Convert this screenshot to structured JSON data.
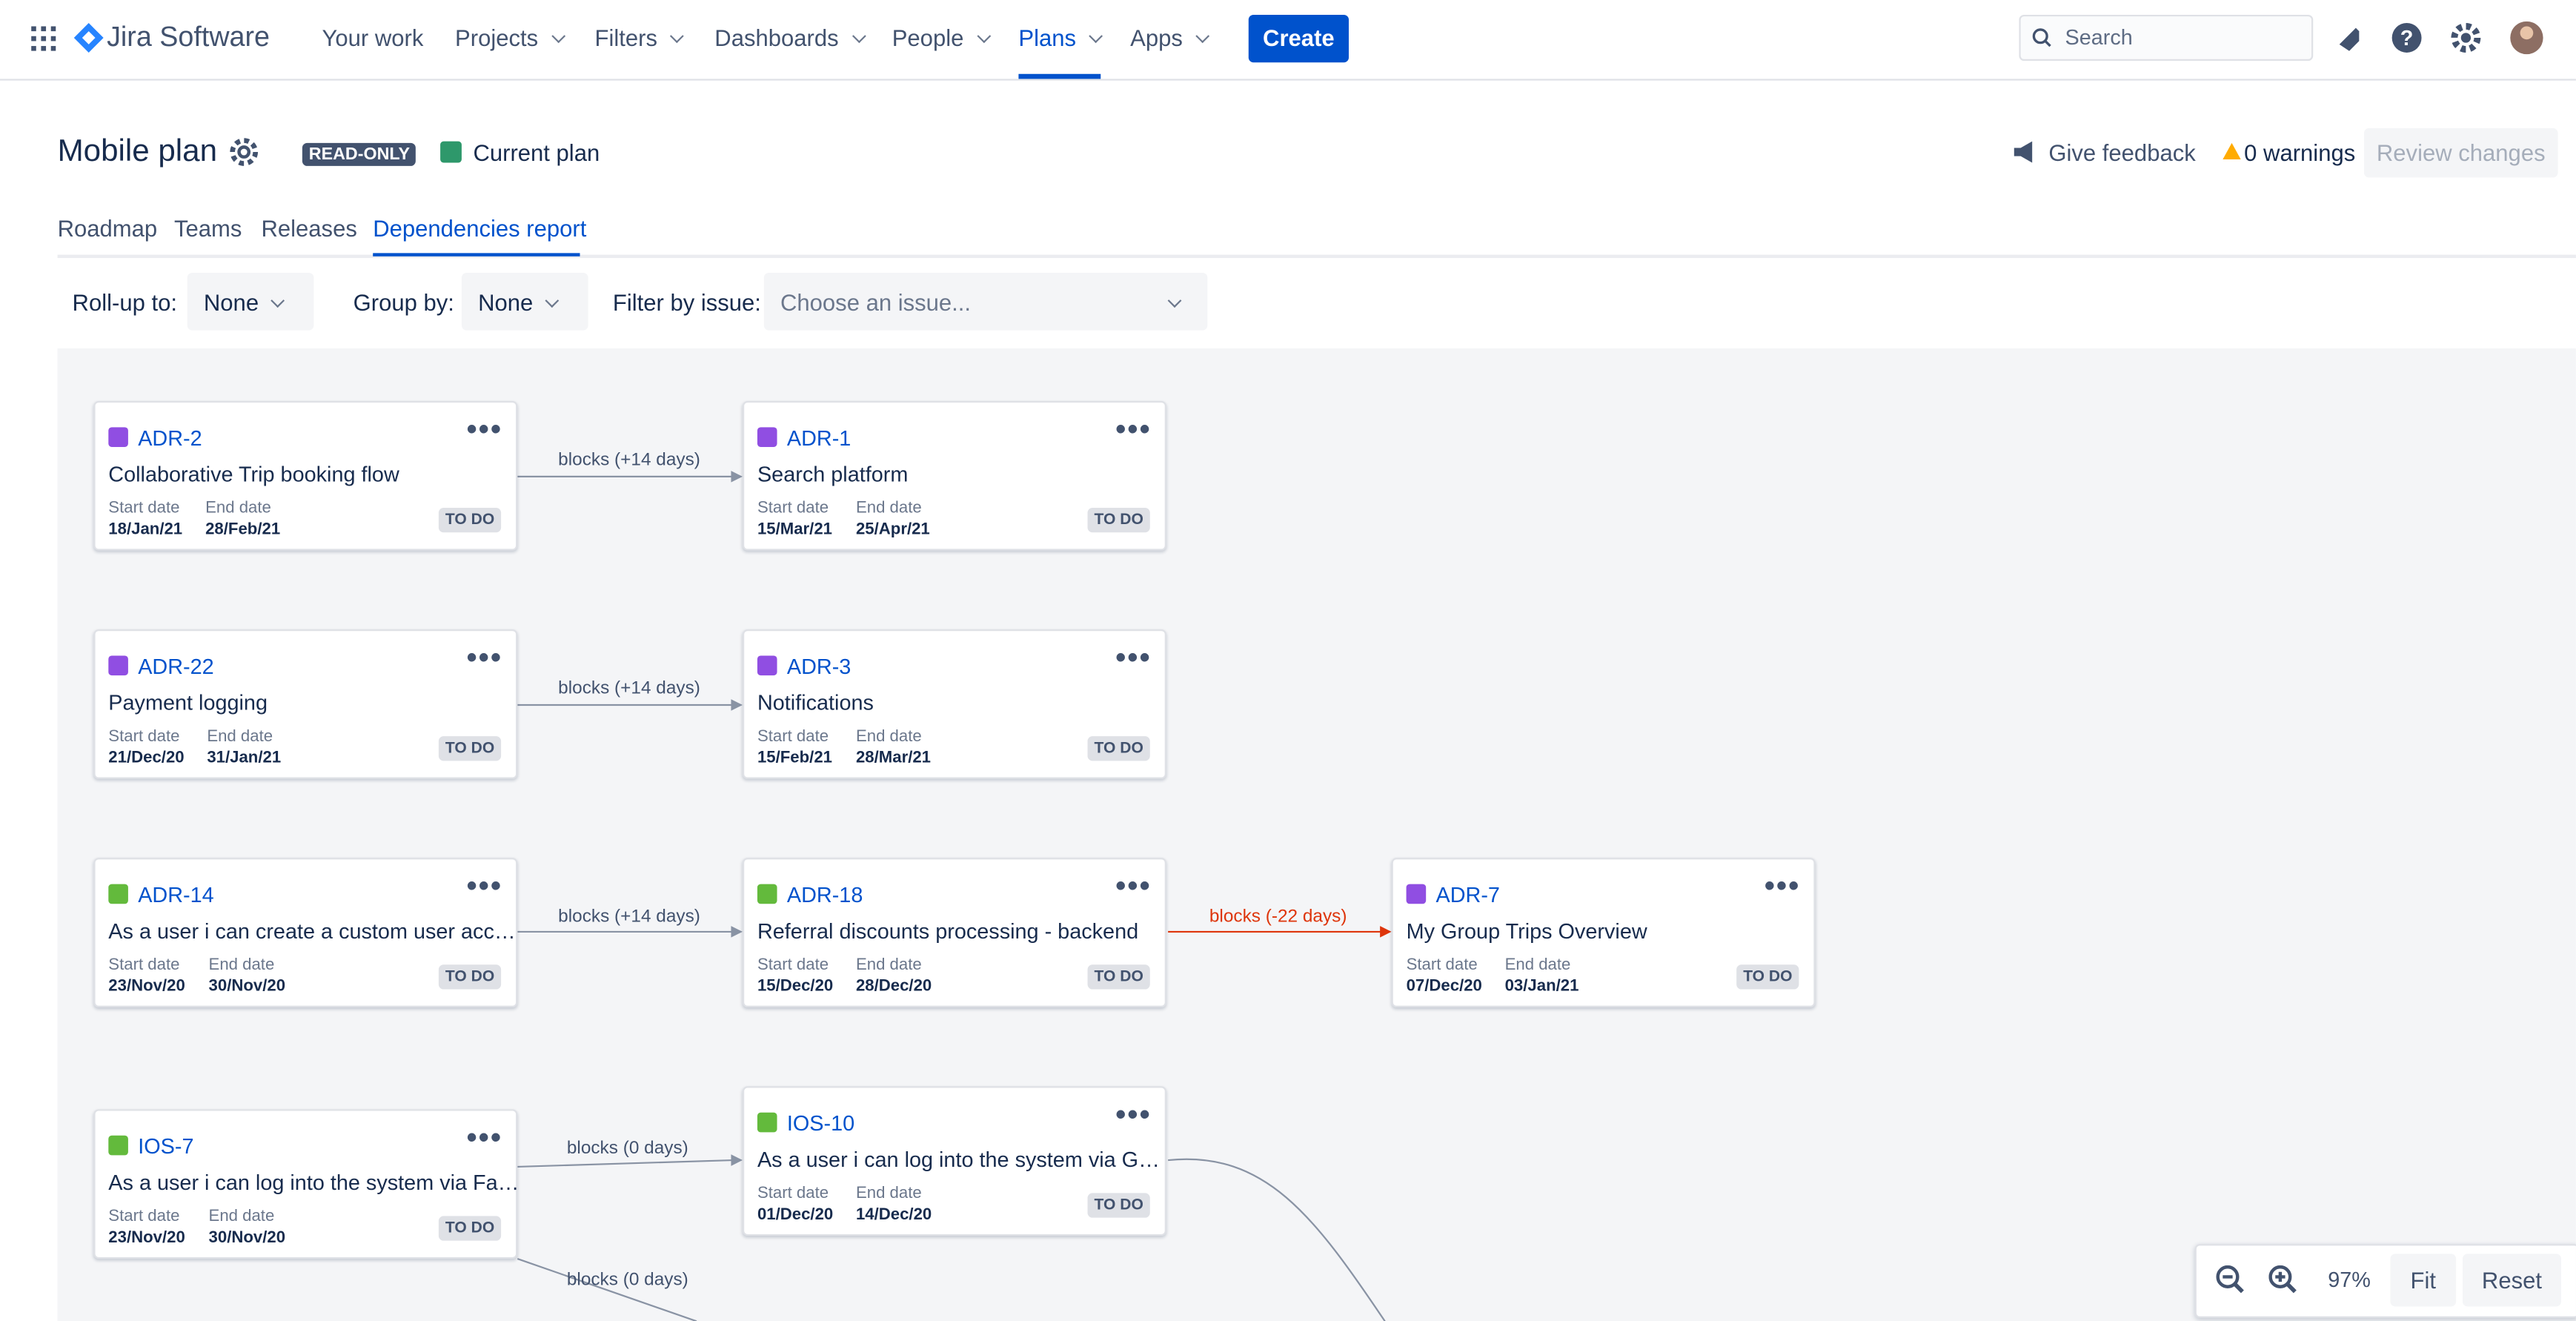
{
  "nav": {
    "product": "Jira Software",
    "items": [
      "Your work",
      "Projects",
      "Filters",
      "Dashboards",
      "People",
      "Plans",
      "Apps"
    ],
    "create": "Create",
    "search_placeholder": "Search"
  },
  "header": {
    "title": "Mobile plan",
    "badge": "READ-ONLY",
    "plan_label": "Current plan",
    "feedback": "Give feedback",
    "warnings": "0 warnings",
    "review": "Review changes"
  },
  "tabs": [
    "Roadmap",
    "Teams",
    "Releases",
    "Dependencies report"
  ],
  "filters": {
    "rollup_label": "Roll-up to:",
    "rollup_value": "None",
    "group_label": "Group by:",
    "group_value": "None",
    "issue_label": "Filter by issue:",
    "issue_placeholder": "Choose an issue..."
  },
  "card_labels": {
    "start": "Start date",
    "end": "End date"
  },
  "cards": [
    {
      "key": "ADR-2",
      "title": "Collaborative Trip booking flow",
      "start": "18/Jan/21",
      "end": "28/Feb/21",
      "status": "TO DO",
      "icon_color": "#904ee2"
    },
    {
      "key": "ADR-1",
      "title": "Search platform",
      "start": "15/Mar/21",
      "end": "25/Apr/21",
      "status": "TO DO",
      "icon_color": "#904ee2"
    },
    {
      "key": "ADR-22",
      "title": "Payment logging",
      "start": "21/Dec/20",
      "end": "31/Jan/21",
      "status": "TO DO",
      "icon_color": "#904ee2"
    },
    {
      "key": "ADR-3",
      "title": "Notifications",
      "start": "15/Feb/21",
      "end": "28/Mar/21",
      "status": "TO DO",
      "icon_color": "#904ee2"
    },
    {
      "key": "ADR-14",
      "title": "As a user i can create a custom user acc…",
      "start": "23/Nov/20",
      "end": "30/Nov/20",
      "status": "TO DO",
      "icon_color": "#63ba3c"
    },
    {
      "key": "ADR-18",
      "title": "Referral discounts processing - backend",
      "start": "15/Dec/20",
      "end": "28/Dec/20",
      "status": "TO DO",
      "icon_color": "#63ba3c"
    },
    {
      "key": "ADR-7",
      "title": "My Group Trips Overview",
      "start": "07/Dec/20",
      "end": "03/Jan/21",
      "status": "TO DO",
      "icon_color": "#904ee2"
    },
    {
      "key": "IOS-7",
      "title": "As a user i can log into the system via Fa…",
      "start": "23/Nov/20",
      "end": "30/Nov/20",
      "status": "TO DO",
      "icon_color": "#63ba3c"
    },
    {
      "key": "IOS-10",
      "title": "As a user i can log into the system via G…",
      "start": "01/Dec/20",
      "end": "14/Dec/20",
      "status": "TO DO",
      "icon_color": "#63ba3c"
    }
  ],
  "edges": [
    {
      "label": "blocks (+14 days)",
      "color": "#8993a4"
    },
    {
      "label": "blocks (+14 days)",
      "color": "#8993a4"
    },
    {
      "label": "blocks (+14 days)",
      "color": "#8993a4"
    },
    {
      "label": "blocks (-22 days)",
      "color": "#de350b"
    },
    {
      "label": "blocks (0 days)",
      "color": "#8993a4"
    },
    {
      "label": "blocks (0 days)",
      "color": "#8993a4"
    }
  ],
  "zoom": {
    "level": "97%",
    "fit": "Fit",
    "reset": "Reset"
  }
}
